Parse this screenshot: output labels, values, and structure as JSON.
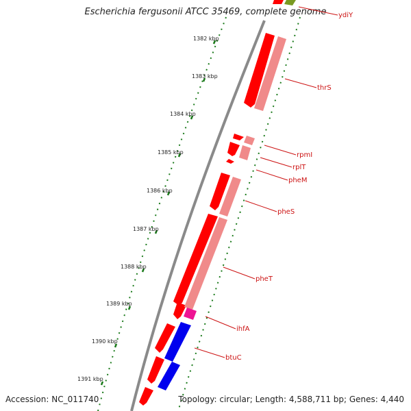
{
  "title": "Escherichia fergusonii ATCC 35469, complete genome",
  "footer": {
    "accession": "Accession: NC_011740",
    "topology": "Topology: circular; Length: 4,588,711 bp; Genes: 4,440"
  },
  "colors": {
    "gene_forward": "#ff0000",
    "gene_light": "#f08a8a",
    "rna": "#ee1493",
    "blue_gene": "#0000ee",
    "green_gene": "#7a9a22",
    "backbone": "#8a8a8a",
    "tick": "#1a7a1a",
    "label": "#cc1111"
  },
  "ruler": [
    "1382 kbp",
    "1383 kbp",
    "1384 kbp",
    "1385 kbp",
    "1386 kbp",
    "1387 kbp",
    "1388 kbp",
    "1389 kbp",
    "1390 kbp",
    "1391 kbp"
  ],
  "gene_labels": [
    "ydiY",
    "thrS",
    "rpmI",
    "rplT",
    "pheM",
    "pheS",
    "pheT",
    "ihfA",
    "btuC"
  ]
}
